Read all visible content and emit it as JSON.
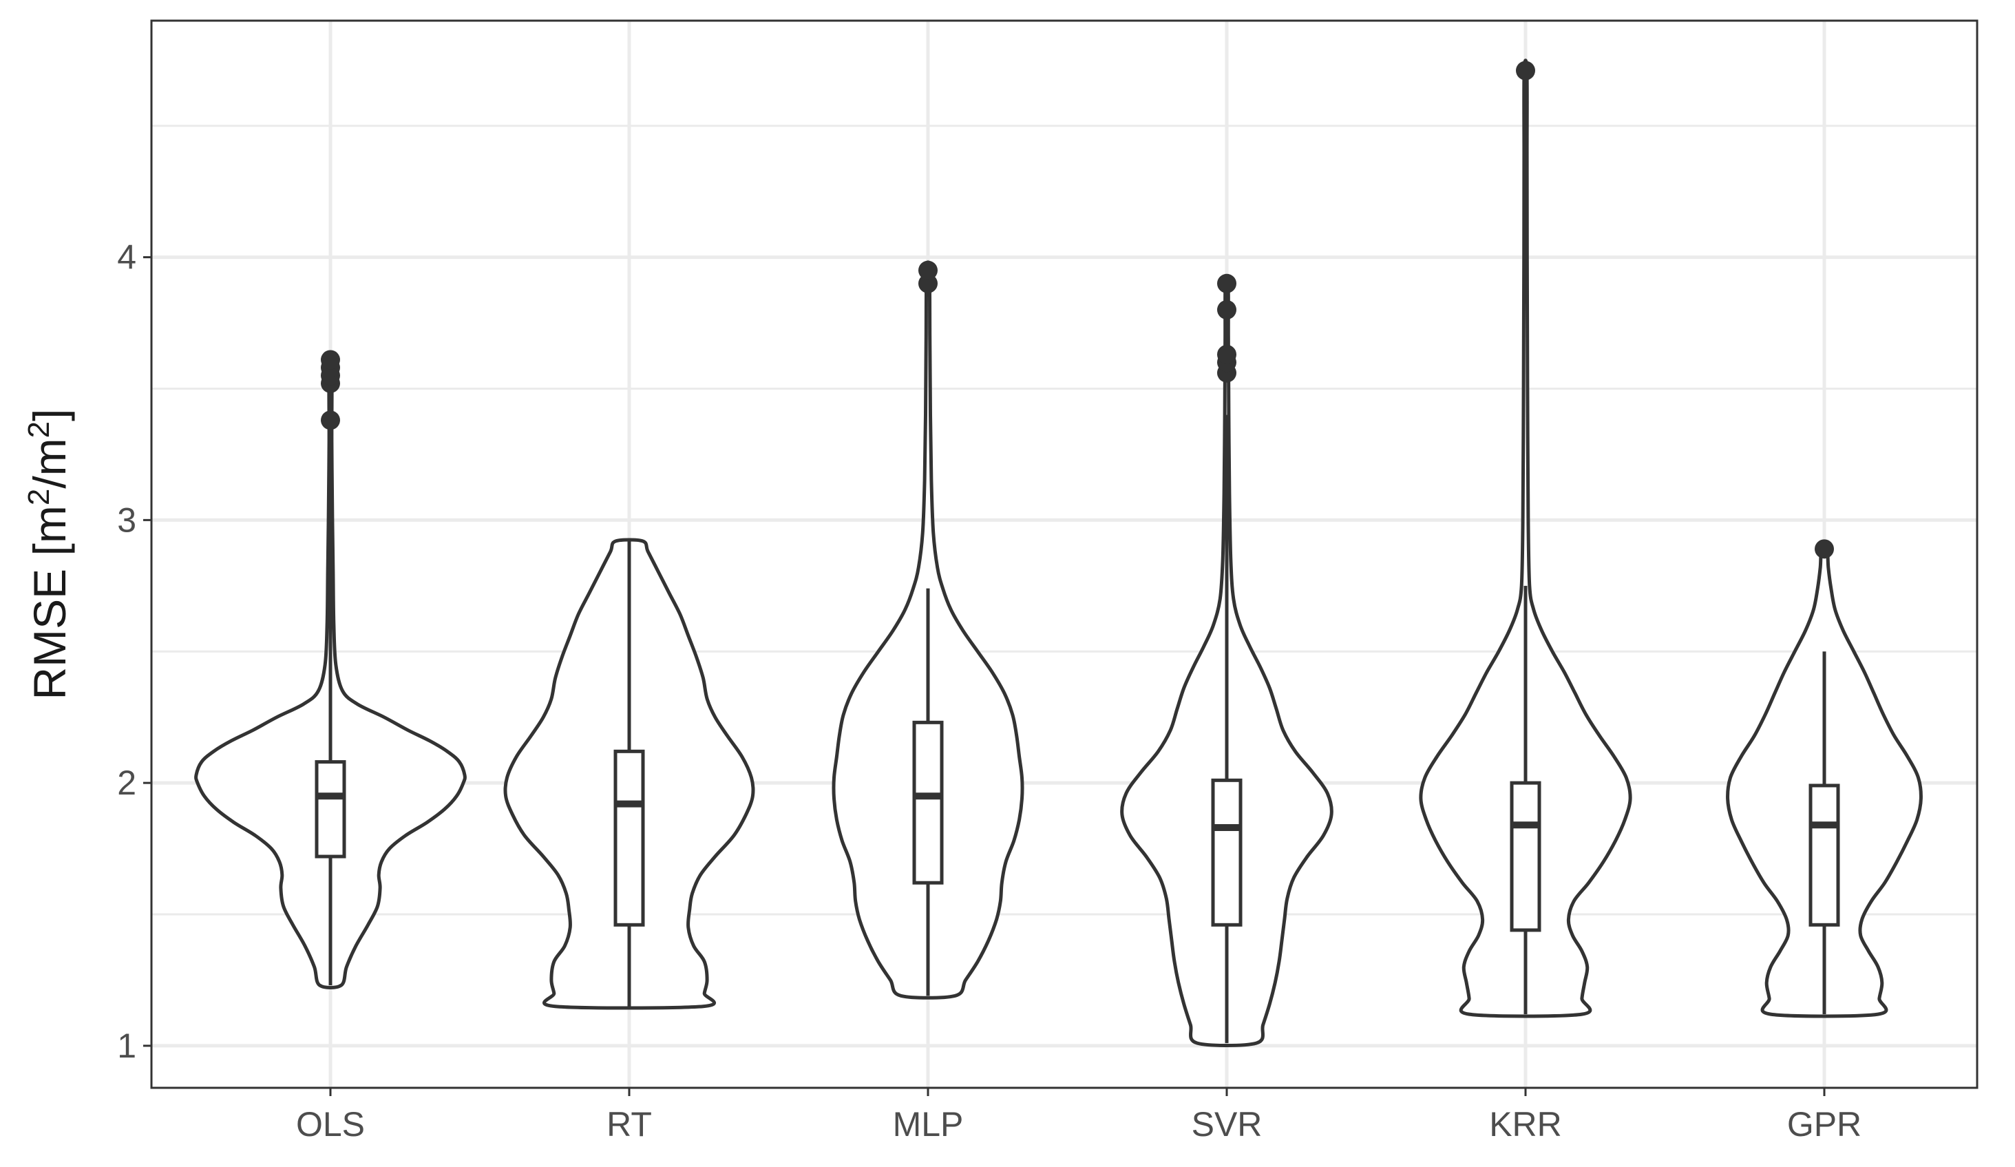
{
  "chart_data": {
    "type": "violin",
    "title": "",
    "xlabel": "",
    "ylabel": "RMSE [m²/m²]",
    "ylabel_parts": {
      "base": "RMSE [m",
      "sup1": "2",
      "mid": "/m",
      "sup2": "2",
      "end": "]"
    },
    "ylim": [
      0.84,
      4.9
    ],
    "yticks": [
      "1",
      "2",
      "3",
      "4"
    ],
    "grid": true,
    "colors": {
      "outline": "#333333",
      "fill": "#ffffff",
      "grid": "#ebebeb",
      "tick_text": "#4d4d4d"
    },
    "categories": [
      "OLS",
      "RT",
      "MLP",
      "SVR",
      "KRR",
      "GPR"
    ],
    "series": [
      {
        "category": "OLS",
        "min": 1.23,
        "q1": 1.72,
        "median": 1.95,
        "q3": 2.08,
        "whisker_high": 3.35,
        "outliers": [
          3.38,
          3.52,
          3.55,
          3.58,
          3.61
        ],
        "density": [
          [
            1.23,
            0.08
          ],
          [
            1.3,
            0.12
          ],
          [
            1.38,
            0.19
          ],
          [
            1.46,
            0.28
          ],
          [
            1.53,
            0.35
          ],
          [
            1.6,
            0.37
          ],
          [
            1.65,
            0.36
          ],
          [
            1.7,
            0.38
          ],
          [
            1.75,
            0.44
          ],
          [
            1.8,
            0.56
          ],
          [
            1.85,
            0.72
          ],
          [
            1.9,
            0.85
          ],
          [
            1.95,
            0.94
          ],
          [
            2.0,
            0.99
          ],
          [
            2.03,
            1.0
          ],
          [
            2.08,
            0.96
          ],
          [
            2.12,
            0.87
          ],
          [
            2.16,
            0.74
          ],
          [
            2.2,
            0.58
          ],
          [
            2.25,
            0.4
          ],
          [
            2.3,
            0.2
          ],
          [
            2.35,
            0.09
          ],
          [
            2.45,
            0.04
          ],
          [
            2.6,
            0.025
          ],
          [
            2.8,
            0.02
          ],
          [
            3.0,
            0.015
          ],
          [
            3.3,
            0.01
          ],
          [
            3.6,
            0.01
          ]
        ]
      },
      {
        "category": "RT",
        "min": 1.15,
        "q1": 1.46,
        "median": 1.92,
        "q3": 2.12,
        "whisker_high": 2.92,
        "outliers": [],
        "density": [
          [
            1.15,
            0.55
          ],
          [
            1.2,
            0.56
          ],
          [
            1.25,
            0.58
          ],
          [
            1.32,
            0.56
          ],
          [
            1.38,
            0.48
          ],
          [
            1.45,
            0.44
          ],
          [
            1.52,
            0.45
          ],
          [
            1.58,
            0.47
          ],
          [
            1.65,
            0.53
          ],
          [
            1.72,
            0.64
          ],
          [
            1.8,
            0.78
          ],
          [
            1.88,
            0.87
          ],
          [
            1.95,
            0.92
          ],
          [
            2.02,
            0.91
          ],
          [
            2.1,
            0.84
          ],
          [
            2.18,
            0.73
          ],
          [
            2.25,
            0.64
          ],
          [
            2.32,
            0.58
          ],
          [
            2.4,
            0.55
          ],
          [
            2.48,
            0.5
          ],
          [
            2.56,
            0.44
          ],
          [
            2.64,
            0.38
          ],
          [
            2.72,
            0.3
          ],
          [
            2.8,
            0.22
          ],
          [
            2.88,
            0.14
          ],
          [
            2.92,
            0.1
          ]
        ]
      },
      {
        "category": "MLP",
        "min": 1.19,
        "q1": 1.62,
        "median": 1.95,
        "q3": 2.23,
        "whisker_high": 2.74,
        "outliers": [
          3.9,
          3.95
        ],
        "density": [
          [
            1.19,
            0.2
          ],
          [
            1.25,
            0.28
          ],
          [
            1.32,
            0.37
          ],
          [
            1.4,
            0.45
          ],
          [
            1.48,
            0.51
          ],
          [
            1.55,
            0.54
          ],
          [
            1.62,
            0.55
          ],
          [
            1.7,
            0.58
          ],
          [
            1.78,
            0.64
          ],
          [
            1.86,
            0.68
          ],
          [
            1.94,
            0.7
          ],
          [
            2.02,
            0.7
          ],
          [
            2.1,
            0.68
          ],
          [
            2.18,
            0.66
          ],
          [
            2.26,
            0.63
          ],
          [
            2.34,
            0.57
          ],
          [
            2.42,
            0.48
          ],
          [
            2.5,
            0.37
          ],
          [
            2.58,
            0.26
          ],
          [
            2.66,
            0.17
          ],
          [
            2.74,
            0.11
          ],
          [
            2.82,
            0.07
          ],
          [
            2.95,
            0.04
          ],
          [
            3.15,
            0.025
          ],
          [
            3.4,
            0.018
          ],
          [
            3.7,
            0.014
          ],
          [
            3.95,
            0.01
          ]
        ]
      },
      {
        "category": "SVR",
        "min": 1.01,
        "q1": 1.46,
        "median": 1.83,
        "q3": 2.01,
        "whisker_high": 3.4,
        "outliers": [
          3.56,
          3.6,
          3.63,
          3.8,
          3.9
        ],
        "density": [
          [
            1.01,
            0.22
          ],
          [
            1.08,
            0.27
          ],
          [
            1.16,
            0.32
          ],
          [
            1.24,
            0.36
          ],
          [
            1.32,
            0.39
          ],
          [
            1.4,
            0.41
          ],
          [
            1.48,
            0.43
          ],
          [
            1.56,
            0.45
          ],
          [
            1.64,
            0.5
          ],
          [
            1.72,
            0.6
          ],
          [
            1.8,
            0.72
          ],
          [
            1.88,
            0.78
          ],
          [
            1.96,
            0.75
          ],
          [
            2.04,
            0.64
          ],
          [
            2.12,
            0.51
          ],
          [
            2.2,
            0.42
          ],
          [
            2.28,
            0.37
          ],
          [
            2.36,
            0.32
          ],
          [
            2.44,
            0.25
          ],
          [
            2.52,
            0.17
          ],
          [
            2.6,
            0.1
          ],
          [
            2.7,
            0.05
          ],
          [
            2.85,
            0.03
          ],
          [
            3.1,
            0.02
          ],
          [
            3.4,
            0.015
          ],
          [
            3.7,
            0.012
          ],
          [
            3.9,
            0.01
          ]
        ]
      },
      {
        "category": "KRR",
        "min": 1.12,
        "q1": 1.44,
        "median": 1.84,
        "q3": 2.0,
        "whisker_high": 2.75,
        "outliers": [
          4.71
        ],
        "density": [
          [
            1.12,
            0.42
          ],
          [
            1.18,
            0.42
          ],
          [
            1.24,
            0.44
          ],
          [
            1.3,
            0.46
          ],
          [
            1.36,
            0.42
          ],
          [
            1.42,
            0.35
          ],
          [
            1.48,
            0.32
          ],
          [
            1.55,
            0.36
          ],
          [
            1.62,
            0.47
          ],
          [
            1.7,
            0.58
          ],
          [
            1.78,
            0.67
          ],
          [
            1.86,
            0.74
          ],
          [
            1.94,
            0.78
          ],
          [
            2.02,
            0.75
          ],
          [
            2.1,
            0.66
          ],
          [
            2.18,
            0.55
          ],
          [
            2.26,
            0.45
          ],
          [
            2.34,
            0.37
          ],
          [
            2.42,
            0.29
          ],
          [
            2.5,
            0.2
          ],
          [
            2.58,
            0.12
          ],
          [
            2.66,
            0.06
          ],
          [
            2.75,
            0.03
          ],
          [
            3.0,
            0.02
          ],
          [
            3.5,
            0.015
          ],
          [
            4.0,
            0.012
          ],
          [
            4.4,
            0.011
          ],
          [
            4.71,
            0.01
          ]
        ]
      },
      {
        "category": "GPR",
        "min": 1.12,
        "q1": 1.46,
        "median": 1.84,
        "q3": 1.99,
        "whisker_high": 2.5,
        "outliers": [
          2.89
        ],
        "density": [
          [
            1.12,
            0.4
          ],
          [
            1.18,
            0.41
          ],
          [
            1.24,
            0.43
          ],
          [
            1.3,
            0.4
          ],
          [
            1.36,
            0.33
          ],
          [
            1.42,
            0.27
          ],
          [
            1.48,
            0.28
          ],
          [
            1.55,
            0.35
          ],
          [
            1.62,
            0.45
          ],
          [
            1.7,
            0.54
          ],
          [
            1.78,
            0.62
          ],
          [
            1.86,
            0.69
          ],
          [
            1.94,
            0.72
          ],
          [
            2.02,
            0.7
          ],
          [
            2.1,
            0.62
          ],
          [
            2.18,
            0.52
          ],
          [
            2.26,
            0.44
          ],
          [
            2.34,
            0.37
          ],
          [
            2.42,
            0.3
          ],
          [
            2.5,
            0.22
          ],
          [
            2.58,
            0.14
          ],
          [
            2.66,
            0.08
          ],
          [
            2.74,
            0.05
          ],
          [
            2.82,
            0.03
          ],
          [
            2.89,
            0.02
          ]
        ]
      }
    ]
  }
}
